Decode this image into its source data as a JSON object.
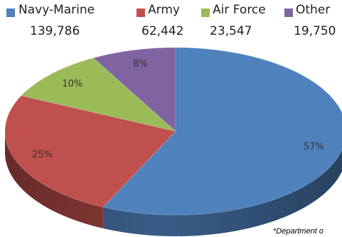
{
  "chart_data": {
    "type": "pie",
    "title": "",
    "legend_position": "top",
    "slices": [
      {
        "name": "Navy-Marine",
        "count": "139,786",
        "label": "57%",
        "value": 57,
        "color": "#4f81bd"
      },
      {
        "name": "Army",
        "count": "62,442",
        "label": "25%",
        "value": 25,
        "color": "#c0504d"
      },
      {
        "name": "Air Force",
        "count": "23,547",
        "label": "10%",
        "value": 10,
        "color": "#9bbb59"
      },
      {
        "name": "Other",
        "count": "19,750",
        "label": "8%",
        "value": 8,
        "color": "#8064a2"
      }
    ]
  },
  "footnote": "*Department o"
}
